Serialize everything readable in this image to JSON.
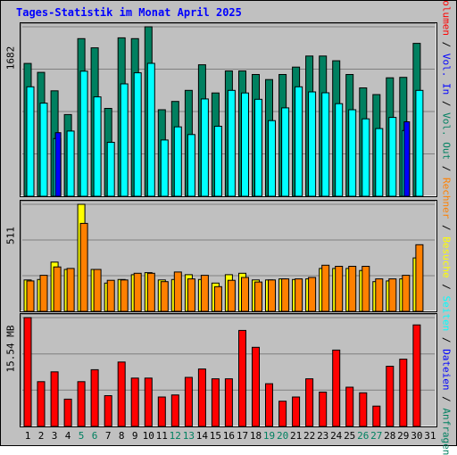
{
  "page": {
    "title": "Tages-Statistik im Monat April 2025"
  },
  "colors": {
    "background": "#c0c0c0",
    "grid": "#7f7f7f",
    "title": "#0000ff",
    "anfragen": "#008060",
    "dateien": "#00ffff",
    "seiten": "#0000ff",
    "besuche": "#ffff00",
    "rechner": "#ff8000",
    "volumen": "#ff0000",
    "weekend_label": "#008060",
    "weekday_label": "#000000"
  },
  "legend": {
    "anfragen": "Anfragen",
    "dateien": "Dateien",
    "seiten": "Seiten",
    "besuche": "Besuche",
    "rechner": "Rechner",
    "vol_out": "Vol. Out",
    "vol_in": "Vol. In",
    "volumen": "Volumen",
    "separator": " / "
  },
  "chart_data": [
    {
      "type": "bar",
      "panel": "requests",
      "ymax_label": "1682",
      "ylim": [
        0,
        1682
      ],
      "grid": true,
      "categories": [
        "1",
        "2",
        "3",
        "4",
        "5",
        "6",
        "7",
        "8",
        "9",
        "10",
        "11",
        "12",
        "13",
        "14",
        "15",
        "16",
        "17",
        "18",
        "19",
        "20",
        "21",
        "22",
        "23",
        "24",
        "25",
        "26",
        "27",
        "28",
        "29",
        "30",
        "31"
      ],
      "weekend_days": [
        "5",
        "6",
        "12",
        "13",
        "19",
        "20",
        "26",
        "27"
      ],
      "series": [
        {
          "name": "Anfragen",
          "values": [
            1318,
            1230,
            1046,
            811,
            1564,
            1473,
            872,
            1572,
            1564,
            1682,
            859,
            941,
            1051,
            1305,
            1025,
            1244,
            1244,
            1208,
            1158,
            1208,
            1282,
            1392,
            1392,
            1345,
            1208,
            1076,
            1009,
            1176,
            1180,
            1517,
            null
          ]
        },
        {
          "name": "Dateien",
          "values": [
            1086,
            924,
            573,
            647,
            1241,
            986,
            536,
            1115,
            1225,
            1319,
            559,
            689,
            613,
            966,
            695,
            1051,
            1025,
            962,
            751,
            877,
            1086,
            1036,
            1027,
            919,
            859,
            768,
            672,
            783,
            652,
            1051,
            null
          ]
        },
        {
          "name": "Seiten",
          "values": [
            null,
            null,
            631,
            null,
            null,
            null,
            null,
            null,
            null,
            null,
            null,
            null,
            null,
            null,
            null,
            null,
            null,
            null,
            null,
            null,
            null,
            null,
            null,
            null,
            null,
            null,
            null,
            null,
            739,
            null,
            null
          ]
        }
      ]
    },
    {
      "type": "bar",
      "panel": "visits",
      "ymax_label": "511",
      "ylim": [
        0,
        511
      ],
      "grid": true,
      "categories": [
        "1",
        "2",
        "3",
        "4",
        "5",
        "6",
        "7",
        "8",
        "9",
        "10",
        "11",
        "12",
        "13",
        "14",
        "15",
        "16",
        "17",
        "18",
        "19",
        "20",
        "21",
        "22",
        "23",
        "24",
        "25",
        "26",
        "27",
        "28",
        "29",
        "30",
        "31"
      ],
      "series": [
        {
          "name": "Besuche",
          "values": [
            150,
            152,
            235,
            200,
            511,
            200,
            135,
            152,
            175,
            185,
            150,
            152,
            175,
            152,
            135,
            175,
            182,
            150,
            150,
            155,
            152,
            155,
            205,
            205,
            205,
            195,
            142,
            145,
            155,
            255,
            null
          ]
        },
        {
          "name": "Rechner",
          "values": [
            145,
            172,
            212,
            205,
            420,
            200,
            148,
            150,
            182,
            182,
            142,
            188,
            155,
            172,
            118,
            148,
            162,
            140,
            150,
            155,
            155,
            162,
            220,
            215,
            215,
            215,
            155,
            155,
            172,
            318,
            null
          ]
        }
      ]
    },
    {
      "type": "bar",
      "panel": "volume",
      "ymax_label": "15.54 MB",
      "ylim": [
        0,
        15.54
      ],
      "grid": true,
      "categories": [
        "1",
        "2",
        "3",
        "4",
        "5",
        "6",
        "7",
        "8",
        "9",
        "10",
        "11",
        "12",
        "13",
        "14",
        "15",
        "16",
        "17",
        "18",
        "19",
        "20",
        "21",
        "22",
        "23",
        "24",
        "25",
        "26",
        "27",
        "28",
        "29",
        "30",
        "31"
      ],
      "series": [
        {
          "name": "Volumen",
          "values": [
            15.54,
            6.4,
            7.8,
            3.9,
            6.4,
            8.1,
            4.4,
            9.2,
            6.9,
            6.9,
            4.2,
            4.5,
            7.0,
            8.2,
            6.8,
            6.8,
            13.7,
            11.3,
            6.1,
            3.6,
            4.2,
            6.8,
            4.9,
            10.9,
            5.6,
            4.8,
            2.9,
            8.6,
            9.6,
            14.5,
            null
          ]
        }
      ]
    }
  ]
}
